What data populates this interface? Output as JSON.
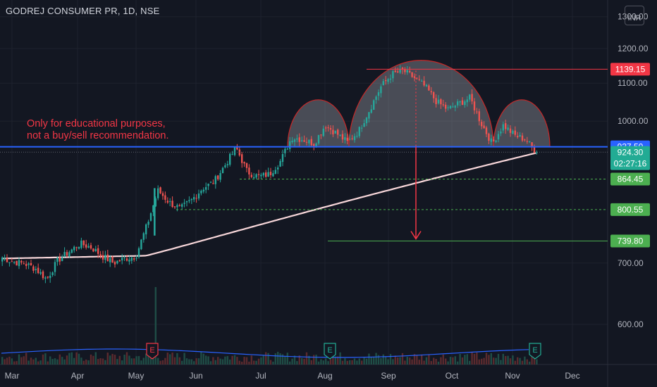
{
  "header": {
    "title": "GODREJ CONSUMER PR, 1D, NSE",
    "currency": "INR"
  },
  "annotation": {
    "line1": "Only for educational purposes,",
    "line2": "not a buy/sell recommendation."
  },
  "colors": {
    "background": "#131722",
    "up": "#26a69a",
    "down": "#ef5350",
    "neckline": "#2962ff",
    "moving_average": "#f8d7da",
    "pattern_outline": "#c62828",
    "target_green": "#4caf50",
    "label_red": "#f23645",
    "label_teal": "#22ab94"
  },
  "chart_data": {
    "type": "candlestick",
    "title": "GODREJ CONSUMER PR, 1D, NSE",
    "xlabel": "",
    "ylabel": "",
    "ylim": [
      555,
      1310
    ],
    "y_scale": "log",
    "grid": true,
    "x_ticks": [
      "Mar",
      "Apr",
      "May",
      "Jun",
      "Jul",
      "Aug",
      "Sep",
      "Oct",
      "Nov",
      "Dec"
    ],
    "y_ticks": [
      {
        "value": 600,
        "label": "600.00"
      },
      {
        "value": 700,
        "label": "700.00"
      },
      {
        "value": 1000,
        "label": "1000.00"
      },
      {
        "value": 1100,
        "label": "1100.00"
      },
      {
        "value": 1200,
        "label": "1200.00"
      },
      {
        "value": 1300,
        "label": "1300.00"
      }
    ],
    "price_labels": [
      {
        "value": 1139.15,
        "label": "1139.15",
        "color": "#f23645",
        "text_color": "#ffffff"
      },
      {
        "value": 937.5,
        "label": "937.50",
        "color": "#2962ff",
        "text_color": "#ffffff"
      },
      {
        "value": 924.3,
        "label": "924.30",
        "sub": "02:27:16",
        "color": "#22ab94",
        "text_color": "#ffffff"
      },
      {
        "value": 864.45,
        "label": "864.45",
        "color": "#4caf50",
        "text_color": "#ffffff"
      },
      {
        "value": 800.55,
        "label": "800.55",
        "color": "#4caf50",
        "text_color": "#ffffff"
      },
      {
        "value": 739.8,
        "label": "739.80",
        "color": "#4caf50",
        "text_color": "#ffffff"
      }
    ],
    "neckline": 937.5,
    "head_level": 1139.15,
    "target": 739.8,
    "support_levels": [
      864.45,
      800.55
    ],
    "last_price": 924.3,
    "countdown": "02:27:16",
    "earnings_markers": [
      {
        "label": "E",
        "month": "May",
        "color": "#f23645"
      },
      {
        "label": "E",
        "month": "Aug",
        "color": "#22ab94"
      },
      {
        "label": "E",
        "month": "Nov",
        "color": "#22ab94"
      }
    ],
    "close_path": [
      [
        "Mar",
        710
      ],
      [
        "Mar",
        702
      ],
      [
        "Mar",
        699
      ],
      [
        "Mar",
        690
      ],
      [
        "Mar",
        672
      ],
      [
        "Apr",
        705
      ],
      [
        "Apr",
        720
      ],
      [
        "Apr",
        735
      ],
      [
        "Apr",
        728
      ],
      [
        "Apr",
        712
      ],
      [
        "Apr",
        700
      ],
      [
        "May",
        708
      ],
      [
        "May",
        712
      ],
      [
        "May",
        770
      ],
      [
        "May",
        840
      ],
      [
        "May",
        815
      ],
      [
        "Jun",
        802
      ],
      [
        "Jun",
        820
      ],
      [
        "Jun",
        845
      ],
      [
        "Jun",
        858
      ],
      [
        "Jun",
        895
      ],
      [
        "Jun",
        935
      ],
      [
        "Jun",
        880
      ],
      [
        "Jul",
        870
      ],
      [
        "Jul",
        875
      ],
      [
        "Jul",
        905
      ],
      [
        "Jul",
        960
      ],
      [
        "Jul",
        955
      ],
      [
        "Aug",
        945
      ],
      [
        "Aug",
        990
      ],
      [
        "Aug",
        970
      ],
      [
        "Aug",
        948
      ],
      [
        "Aug",
        975
      ],
      [
        "Aug",
        1030
      ],
      [
        "Sep",
        1090
      ],
      [
        "Sep",
        1125
      ],
      [
        "Sep",
        1135
      ],
      [
        "Sep",
        1115
      ],
      [
        "Sep",
        1090
      ],
      [
        "Oct",
        1050
      ],
      [
        "Oct",
        1030
      ],
      [
        "Oct",
        1045
      ],
      [
        "Oct",
        1060
      ],
      [
        "Oct",
        995
      ],
      [
        "Nov",
        945
      ],
      [
        "Nov",
        990
      ],
      [
        "Nov",
        965
      ],
      [
        "Nov",
        955
      ],
      [
        "Nov",
        924.3
      ]
    ]
  }
}
